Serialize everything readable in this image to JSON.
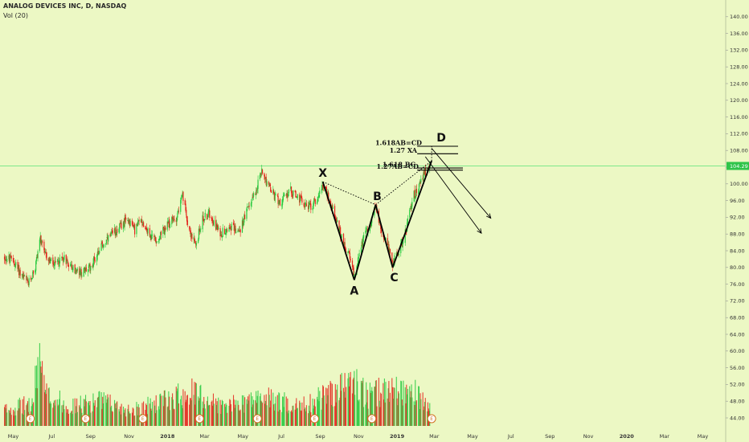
{
  "legend": {
    "title": "ANALOG DEVICES INC, D, NASDAQ",
    "indicator": "Vol (20)"
  },
  "colors": {
    "background": "#ecf8c4",
    "up": "#27c93f",
    "down": "#e3241c",
    "pattern": "#000000",
    "price_line": "#7ee88a",
    "price_tag": "#2fc44a",
    "earnings": "#d07020"
  },
  "chart_data": {
    "type": "candlestick",
    "title": "ANALOG DEVICES INC, D, NASDAQ",
    "y_axis": {
      "ticks": [
        "140.00",
        "136.00",
        "132.00",
        "128.00",
        "124.00",
        "120.00",
        "116.00",
        "112.00",
        "108.00",
        "104.00",
        "100.00",
        "96.00",
        "92.00",
        "88.00",
        "84.00",
        "80.00",
        "76.00",
        "72.00",
        "68.00",
        "64.00",
        "60.00",
        "56.00",
        "52.00",
        "48.00",
        "44.00"
      ],
      "range": [
        42,
        142
      ],
      "position": "right"
    },
    "x_axis": {
      "ticks": [
        {
          "label": "May",
          "bold": false
        },
        {
          "label": "Jul",
          "bold": false
        },
        {
          "label": "Sep",
          "bold": false
        },
        {
          "label": "Nov",
          "bold": false
        },
        {
          "label": "2018",
          "bold": true
        },
        {
          "label": "Mar",
          "bold": false
        },
        {
          "label": "May",
          "bold": false
        },
        {
          "label": "Jul",
          "bold": false
        },
        {
          "label": "Sep",
          "bold": false
        },
        {
          "label": "Nov",
          "bold": false
        },
        {
          "label": "2019",
          "bold": true
        },
        {
          "label": "Mar",
          "bold": false
        },
        {
          "label": "May",
          "bold": false
        },
        {
          "label": "Jul",
          "bold": false
        },
        {
          "label": "Sep",
          "bold": false
        },
        {
          "label": "Nov",
          "bold": false
        },
        {
          "label": "2020",
          "bold": true
        },
        {
          "label": "Mar",
          "bold": false
        },
        {
          "label": "May",
          "bold": false
        }
      ],
      "range": [
        "2017-04-15",
        "2020-05-31"
      ]
    },
    "last_price": {
      "value": 104.29,
      "label": "104.29"
    },
    "price_path": [
      [
        "2017-04-15",
        82.5
      ],
      [
        "2017-05-01",
        81.5
      ],
      [
        "2017-05-15",
        78.0
      ],
      [
        "2017-05-25",
        76.0
      ],
      [
        "2017-06-05",
        80.0
      ],
      [
        "2017-06-12",
        87.0
      ],
      [
        "2017-06-20",
        83.0
      ],
      [
        "2017-07-05",
        80.5
      ],
      [
        "2017-07-20",
        82.5
      ],
      [
        "2017-08-05",
        79.5
      ],
      [
        "2017-08-15",
        78.5
      ],
      [
        "2017-08-31",
        80.0
      ],
      [
        "2017-09-15",
        84.5
      ],
      [
        "2017-10-01",
        87.0
      ],
      [
        "2017-10-15",
        89.5
      ],
      [
        "2017-10-31",
        91.5
      ],
      [
        "2017-11-10",
        89.0
      ],
      [
        "2017-11-20",
        91.5
      ],
      [
        "2017-12-05",
        87.5
      ],
      [
        "2017-12-15",
        86.5
      ],
      [
        "2018-01-01",
        90.0
      ],
      [
        "2018-01-15",
        92.0
      ],
      [
        "2018-01-25",
        97.0
      ],
      [
        "2018-02-05",
        89.0
      ],
      [
        "2018-02-15",
        85.0
      ],
      [
        "2018-02-25",
        91.5
      ],
      [
        "2018-03-10",
        93.0
      ],
      [
        "2018-03-25",
        88.0
      ],
      [
        "2018-04-10",
        90.0
      ],
      [
        "2018-04-25",
        88.5
      ],
      [
        "2018-05-10",
        94.5
      ],
      [
        "2018-05-20",
        98.0
      ],
      [
        "2018-06-01",
        103.5
      ],
      [
        "2018-06-10",
        99.5
      ],
      [
        "2018-06-20",
        97.0
      ],
      [
        "2018-07-01",
        95.5
      ],
      [
        "2018-07-15",
        98.5
      ],
      [
        "2018-08-01",
        96.0
      ],
      [
        "2018-08-15",
        94.5
      ],
      [
        "2018-08-25",
        96.0
      ],
      [
        "2018-09-05",
        100.0
      ],
      [
        "2018-09-15",
        96.5
      ],
      [
        "2018-09-25",
        92.0
      ],
      [
        "2018-10-05",
        87.0
      ],
      [
        "2018-10-15",
        83.5
      ],
      [
        "2018-10-25",
        78.0
      ],
      [
        "2018-11-01",
        83.0
      ],
      [
        "2018-11-10",
        87.5
      ],
      [
        "2018-11-20",
        91.0
      ],
      [
        "2018-11-28",
        94.5
      ],
      [
        "2018-12-05",
        90.0
      ],
      [
        "2018-12-15",
        86.0
      ],
      [
        "2018-12-25",
        81.0
      ],
      [
        "2019-01-05",
        84.5
      ],
      [
        "2019-01-15",
        88.5
      ],
      [
        "2019-01-25",
        96.5
      ],
      [
        "2019-02-05",
        99.5
      ],
      [
        "2019-02-15",
        103.0
      ],
      [
        "2019-02-22",
        104.3
      ]
    ],
    "volume_path": [
      [
        "2017-04-15",
        47
      ],
      [
        "2017-06-01",
        49
      ],
      [
        "2017-06-12",
        66
      ],
      [
        "2017-06-20",
        52
      ],
      [
        "2017-08-01",
        48
      ],
      [
        "2017-09-15",
        50
      ],
      [
        "2017-11-01",
        47
      ],
      [
        "2017-12-15",
        49
      ],
      [
        "2018-02-05",
        53
      ],
      [
        "2018-04-01",
        48
      ],
      [
        "2018-06-01",
        51
      ],
      [
        "2018-08-01",
        48
      ],
      [
        "2018-10-25",
        56
      ],
      [
        "2018-11-15",
        51
      ],
      [
        "2018-12-20",
        54
      ],
      [
        "2019-01-30",
        52
      ],
      [
        "2019-02-22",
        47
      ]
    ],
    "volume_axis_range": [
      42,
      68
    ],
    "earnings_dates": [
      "2017-05-28",
      "2017-08-24",
      "2017-11-23",
      "2018-02-21",
      "2018-05-24",
      "2018-08-23",
      "2018-11-22",
      "2019-02-25"
    ],
    "earnings_marker": "E",
    "harmonic_pattern": {
      "points": [
        {
          "label": "X",
          "date": "2018-09-05",
          "price": 100.5
        },
        {
          "label": "A",
          "date": "2018-10-25",
          "price": 77.0
        },
        {
          "label": "B",
          "date": "2018-11-28",
          "price": 95.0
        },
        {
          "label": "C",
          "date": "2018-12-25",
          "price": 80.0
        },
        {
          "label": "D",
          "date": "2019-02-25",
          "price": 105.5
        }
      ],
      "projection_point": {
        "date": "2019-02-25",
        "price": 109.0
      },
      "levels": [
        {
          "label": "1.618AB=CD",
          "price": 109.0
        },
        {
          "label": "1.27 XA",
          "price": 107.2
        },
        {
          "label": "1.618 BC",
          "price": 103.8
        },
        {
          "label": "1.27AB=CD",
          "price": 103.3
        }
      ],
      "target_arrows": [
        {
          "from": [
            "2019-02-15",
            106.5
          ],
          "to": [
            "2019-05-15",
            88.2
          ]
        },
        {
          "from": [
            "2019-02-25",
            108.5
          ],
          "to": [
            "2019-05-30",
            91.8
          ]
        }
      ]
    }
  }
}
